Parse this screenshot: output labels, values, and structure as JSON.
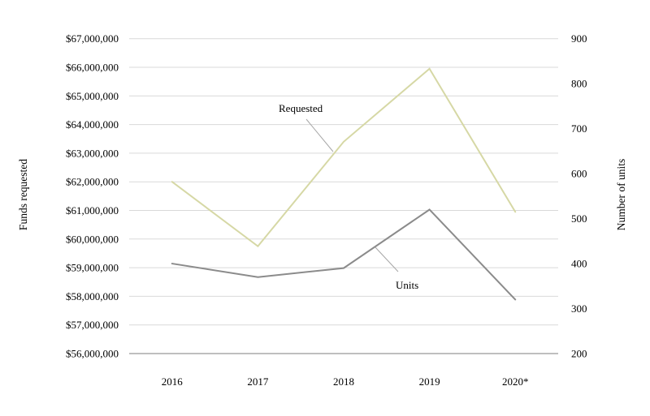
{
  "chart_data": {
    "type": "line",
    "categories": [
      "2016",
      "2017",
      "2018",
      "2019",
      "2020*"
    ],
    "series": [
      {
        "name": "Requested",
        "axis": "left",
        "color": "#d6d8a5",
        "values": [
          62000000,
          59750000,
          63400000,
          65950000,
          60950000
        ]
      },
      {
        "name": "Units",
        "axis": "right",
        "color": "#8b8b8b",
        "values": [
          400,
          370,
          390,
          520,
          320
        ]
      }
    ],
    "y_left": {
      "label": "Funds requested",
      "min": 56000000,
      "max": 67000000,
      "step": 1000000,
      "tick_labels": [
        "$56,000,000",
        "$57,000,000",
        "$58,000,000",
        "$59,000,000",
        "$60,000,000",
        "$61,000,000",
        "$62,000,000",
        "$63,000,000",
        "$64,000,000",
        "$65,000,000",
        "$66,000,000",
        "$67,000,000"
      ]
    },
    "y_right": {
      "label": "Number of units",
      "min": 200,
      "max": 900,
      "step": 100,
      "tick_labels": [
        "200",
        "300",
        "400",
        "500",
        "600",
        "700",
        "800",
        "900"
      ]
    },
    "annotations": [
      {
        "text": "Requested",
        "series": "Requested"
      },
      {
        "text": "Units",
        "series": "Units"
      }
    ],
    "grid": true,
    "legend": "inline-annotations",
    "title": ""
  },
  "colors": {
    "gridline": "#d9d9d9",
    "baseline": "#bfbfbf",
    "leader_line": "#a6a6a6",
    "background": "#ffffff",
    "text": "#000000"
  }
}
